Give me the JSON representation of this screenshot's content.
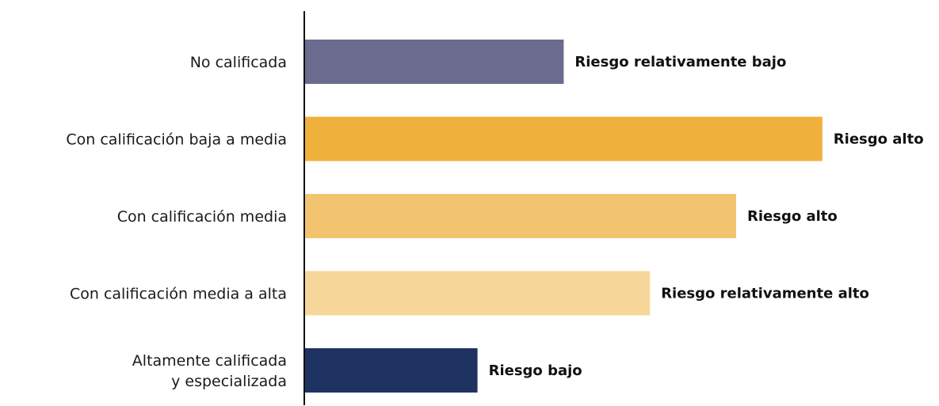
{
  "chart_data": {
    "type": "bar",
    "orientation": "horizontal",
    "title": "",
    "xlabel": "",
    "ylabel": "",
    "grid": false,
    "categories": [
      "No calificada",
      "Con calificación baja a media",
      "Con calificación media",
      "Con calificación media a alta",
      "Altamente calificada\ny especializada"
    ],
    "values": [
      3,
      6,
      5,
      4,
      2
    ],
    "xlim": [
      0,
      6
    ],
    "data_labels": [
      "Riesgo relativamente bajo",
      "Riesgo alto",
      "Riesgo alto",
      "Riesgo relativamente alto",
      "Riesgo bajo"
    ],
    "colors": [
      "#6a6b8e",
      "#efb13c",
      "#f3c470",
      "#f7d799",
      "#1f3363"
    ]
  }
}
